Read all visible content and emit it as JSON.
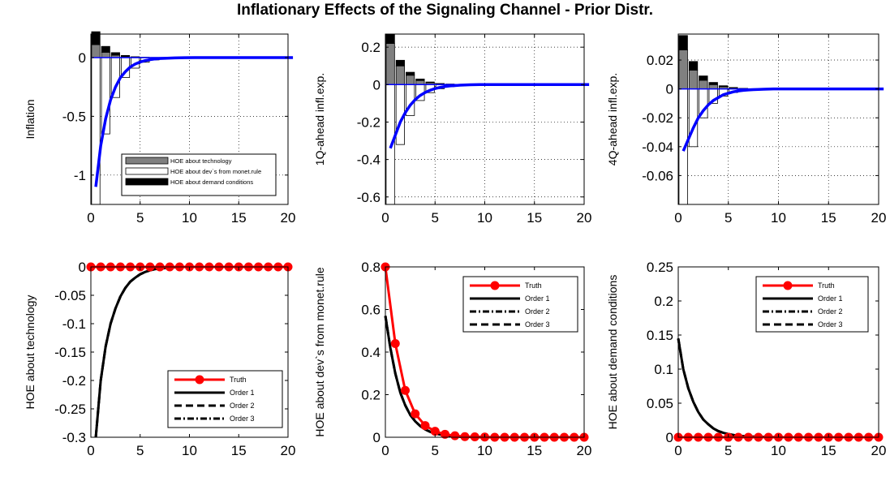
{
  "title": "Inflationary Effects of the Signaling Channel - Prior Distr.",
  "colors": {
    "truth": "#ff0000",
    "model": "#0000ff",
    "technology": "#808080",
    "monet": "#ffffff",
    "demand": "#000000"
  },
  "chart_data": [
    {
      "type": "bar",
      "ylabel": "Inflation",
      "xlim": [
        0,
        20
      ],
      "ylim": [
        -1.25,
        0.2
      ],
      "xticks": [
        "0",
        "5",
        "10",
        "15",
        "20"
      ],
      "yticks": [
        "0",
        "-0.5",
        "-1"
      ],
      "yticks_values": [
        0,
        -0.5,
        -1
      ],
      "legend": [
        "HOE about technology",
        "HOE about dev`s from monet.rule",
        "HOE about demand conditions"
      ],
      "legend_position": "bottom-right",
      "grid": true,
      "x": [
        0,
        1,
        2,
        3,
        4,
        5,
        6
      ],
      "series": [
        {
          "name": "HOE about technology",
          "values": [
            0.11,
            0.045,
            0.02,
            0.008,
            0.003,
            0.001,
            0.0
          ]
        },
        {
          "name": "HOE about dev`s from monet.rule",
          "values": [
            -1.25,
            -0.65,
            -0.34,
            -0.17,
            -0.09,
            -0.04,
            -0.02
          ]
        },
        {
          "name": "HOE about demand conditions",
          "values": [
            0.11,
            0.05,
            0.022,
            0.01,
            0.004,
            0.002,
            0.001
          ]
        }
      ],
      "line": {
        "x": [
          0,
          0.5,
          1,
          1.5,
          2,
          2.5,
          3,
          3.5,
          4,
          4.5,
          5,
          5.5,
          6,
          6.5,
          7,
          8,
          9,
          10,
          12,
          14,
          16,
          18,
          20
        ],
        "y": [
          -1.1,
          -0.75,
          -0.52,
          -0.36,
          -0.25,
          -0.17,
          -0.12,
          -0.08,
          -0.055,
          -0.038,
          -0.026,
          -0.018,
          -0.012,
          -0.008,
          -0.006,
          -0.003,
          -0.001,
          0,
          0,
          0,
          0,
          0,
          0
        ]
      }
    },
    {
      "type": "bar",
      "ylabel": "1Q-ahead infl.exp.",
      "xlim": [
        0,
        20
      ],
      "ylim": [
        -0.64,
        0.27
      ],
      "xticks": [
        "0",
        "5",
        "10",
        "15",
        "20"
      ],
      "yticks": [
        "0.2",
        "0",
        "-0.2",
        "-0.4",
        "-0.6"
      ],
      "yticks_values": [
        0.2,
        0,
        -0.2,
        -0.4,
        -0.6
      ],
      "grid": true,
      "x": [
        0,
        1,
        2,
        3,
        4,
        5,
        6
      ],
      "series": [
        {
          "name": "HOE about technology",
          "values": [
            0.22,
            0.1,
            0.05,
            0.022,
            0.01,
            0.004,
            0.002
          ]
        },
        {
          "name": "HOE about dev`s from monet.rule",
          "values": [
            -0.64,
            -0.32,
            -0.165,
            -0.085,
            -0.043,
            -0.022,
            -0.011
          ]
        },
        {
          "name": "HOE about demand conditions",
          "values": [
            0.05,
            0.03,
            0.016,
            0.008,
            0.004,
            0.002,
            0.001
          ]
        }
      ],
      "line": {
        "x": [
          0,
          0.5,
          1,
          1.5,
          2,
          2.5,
          3,
          3.5,
          4,
          4.5,
          5,
          5.5,
          6,
          6.5,
          7,
          8,
          9,
          10,
          12,
          14,
          16,
          18,
          20
        ],
        "y": [
          -0.34,
          -0.27,
          -0.2,
          -0.15,
          -0.11,
          -0.08,
          -0.058,
          -0.042,
          -0.03,
          -0.021,
          -0.015,
          -0.01,
          -0.007,
          -0.005,
          -0.003,
          -0.001,
          0,
          0,
          0,
          0,
          0,
          0,
          0
        ]
      }
    },
    {
      "type": "bar",
      "ylabel": "4Q-ahead infl.exp.",
      "xlim": [
        0,
        20
      ],
      "ylim": [
        -0.08,
        0.038
      ],
      "xticks": [
        "0",
        "5",
        "10",
        "15",
        "20"
      ],
      "yticks": [
        "0.02",
        "0",
        "-0.02",
        "-0.04",
        "-0.06"
      ],
      "yticks_values": [
        0.02,
        0,
        -0.02,
        -0.04,
        -0.06
      ],
      "grid": true,
      "x": [
        0,
        1,
        2,
        3,
        4,
        5,
        6
      ],
      "series": [
        {
          "name": "HOE about technology",
          "values": [
            0.027,
            0.013,
            0.006,
            0.003,
            0.0015,
            0.0007,
            0.0003
          ]
        },
        {
          "name": "HOE about dev`s from monet.rule",
          "values": [
            -0.08,
            -0.04,
            -0.02,
            -0.01,
            -0.005,
            -0.0025,
            -0.001
          ]
        },
        {
          "name": "HOE about demand conditions",
          "values": [
            0.01,
            0.006,
            0.003,
            0.0015,
            0.0007,
            0.0003,
            0.0001
          ]
        }
      ],
      "line": {
        "x": [
          0,
          0.5,
          1,
          1.5,
          2,
          2.5,
          3,
          3.5,
          4,
          4.5,
          5,
          5.5,
          6,
          6.5,
          7,
          8,
          9,
          10,
          12,
          14,
          16,
          18,
          20
        ],
        "y": [
          -0.043,
          -0.035,
          -0.027,
          -0.02,
          -0.015,
          -0.011,
          -0.008,
          -0.006,
          -0.004,
          -0.003,
          -0.002,
          -0.0014,
          -0.001,
          -0.0007,
          -0.0005,
          -0.0002,
          0,
          0,
          0,
          0,
          0,
          0,
          0
        ]
      }
    },
    {
      "type": "line",
      "ylabel": "HOE about technology",
      "xlim": [
        0,
        20
      ],
      "ylim": [
        -0.3,
        0
      ],
      "xticks": [
        "0",
        "5",
        "10",
        "15",
        "20"
      ],
      "yticks": [
        "0",
        "-0.05",
        "-0.1",
        "-0.15",
        "-0.2",
        "-0.25",
        "-0.3"
      ],
      "yticks_values": [
        0,
        -0.05,
        -0.1,
        -0.15,
        -0.2,
        -0.25,
        -0.3
      ],
      "legend": [
        "Truth",
        "Order 1",
        "Order 2",
        "Order 3"
      ],
      "legend_position": "bottom-right",
      "grid": false,
      "truth": {
        "x": [
          0,
          1,
          2,
          3,
          4,
          5,
          6,
          7,
          8,
          9,
          10,
          11,
          12,
          13,
          14,
          15,
          16,
          17,
          18,
          19,
          20
        ],
        "y": [
          0,
          0,
          0,
          0,
          0,
          0,
          0,
          0,
          0,
          0,
          0,
          0,
          0,
          0,
          0,
          0,
          0,
          0,
          0,
          0,
          0
        ]
      },
      "orders": {
        "x": [
          0.5,
          1,
          1.5,
          2,
          2.5,
          3,
          3.5,
          4,
          4.5,
          5,
          5.5,
          6,
          6.5,
          7,
          8,
          9,
          10,
          12,
          14,
          16,
          18,
          20
        ],
        "y": [
          -0.3,
          -0.2,
          -0.14,
          -0.1,
          -0.073,
          -0.052,
          -0.037,
          -0.026,
          -0.019,
          -0.013,
          -0.009,
          -0.006,
          -0.004,
          -0.003,
          -0.001,
          0,
          0,
          0,
          0,
          0,
          0,
          0
        ]
      }
    },
    {
      "type": "line",
      "ylabel": "HOE about dev`s from monet.rule",
      "xlim": [
        0,
        20
      ],
      "ylim": [
        0,
        0.8
      ],
      "xticks": [
        "0",
        "5",
        "10",
        "15",
        "20"
      ],
      "yticks": [
        "0.8",
        "0.6",
        "0.4",
        "0.2",
        "0"
      ],
      "yticks_values": [
        0.8,
        0.6,
        0.4,
        0.2,
        0
      ],
      "legend": [
        "Truth",
        "Order 1",
        "Order 2",
        "Order 3"
      ],
      "legend_position": "top-right",
      "grid": false,
      "truth": {
        "x": [
          0,
          1,
          2,
          3,
          4,
          5,
          6,
          7,
          8,
          9,
          10,
          11,
          12,
          13,
          14,
          15,
          16,
          17,
          18,
          19,
          20
        ],
        "y": [
          0.8,
          0.44,
          0.22,
          0.11,
          0.055,
          0.028,
          0.014,
          0.007,
          0.003,
          0.002,
          0.001,
          0,
          0,
          0,
          0,
          0,
          0,
          0,
          0,
          0,
          0
        ]
      },
      "orders": {
        "x": [
          0,
          0.5,
          1,
          1.5,
          2,
          2.5,
          3,
          3.5,
          4,
          4.5,
          5,
          5.5,
          6,
          6.5,
          7,
          8,
          9,
          10,
          12,
          14,
          16,
          18,
          20
        ],
        "y": [
          0.57,
          0.42,
          0.3,
          0.21,
          0.15,
          0.105,
          0.075,
          0.053,
          0.037,
          0.026,
          0.018,
          0.013,
          0.009,
          0.006,
          0.004,
          0.002,
          0.001,
          0,
          0,
          0,
          0,
          0,
          0
        ]
      }
    },
    {
      "type": "line",
      "ylabel": "HOE about demand conditions",
      "xlim": [
        0,
        20
      ],
      "ylim": [
        0,
        0.25
      ],
      "xticks": [
        "0",
        "5",
        "10",
        "15",
        "20"
      ],
      "yticks": [
        "0.25",
        "0.2",
        "0.15",
        "0.1",
        "0.05",
        "0"
      ],
      "yticks_values": [
        0.25,
        0.2,
        0.15,
        0.1,
        0.05,
        0
      ],
      "legend": [
        "Truth",
        "Order 1",
        "Order 2",
        "Order 3"
      ],
      "legend_position": "top-right",
      "grid": false,
      "truth": {
        "x": [
          0,
          1,
          2,
          3,
          4,
          5,
          6,
          7,
          8,
          9,
          10,
          11,
          12,
          13,
          14,
          15,
          16,
          17,
          18,
          19,
          20
        ],
        "y": [
          0,
          0,
          0,
          0,
          0,
          0,
          0,
          0,
          0,
          0,
          0,
          0,
          0,
          0,
          0,
          0,
          0,
          0,
          0,
          0,
          0
        ]
      },
      "orders": {
        "x": [
          0,
          0.5,
          1,
          1.5,
          2,
          2.5,
          3,
          3.5,
          4,
          4.5,
          5,
          5.5,
          6,
          6.5,
          7,
          8,
          9,
          10,
          12,
          14,
          16,
          18,
          20
        ],
        "y": [
          0.145,
          0.1,
          0.072,
          0.052,
          0.037,
          0.026,
          0.019,
          0.013,
          0.009,
          0.0065,
          0.0046,
          0.0033,
          0.0023,
          0.0016,
          0.0011,
          0.0006,
          0.0003,
          0,
          0,
          0,
          0,
          0,
          0
        ]
      }
    }
  ]
}
